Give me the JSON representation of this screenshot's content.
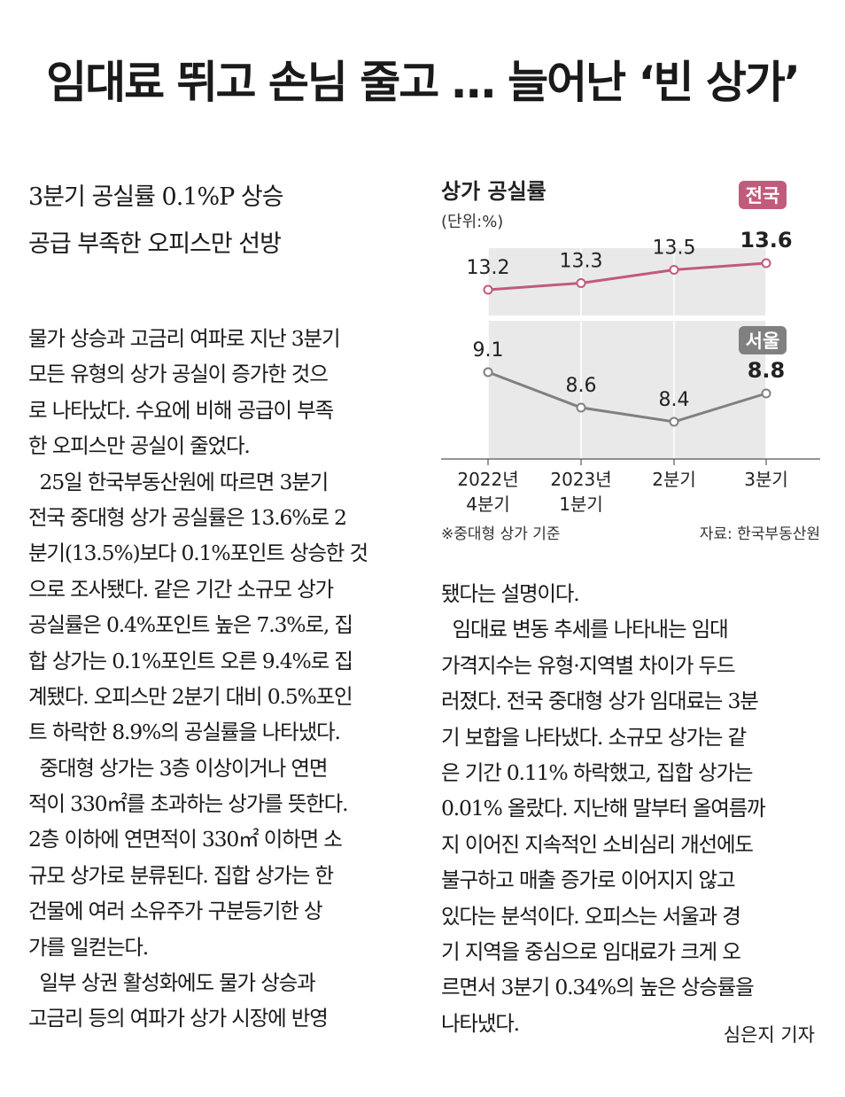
{
  "headline": "임대료 뛰고 손님 줄고 … 늘어난 ‘빈 상가’",
  "subhead": [
    "3분기 공실률 0.1%P 상승",
    "공급 부족한 오피스만 선방"
  ],
  "body_left": [
    "물가 상승과 고금리 여파로 지난 3분기",
    "모든 유형의 상가 공실이 증가한 것으",
    "로 나타났다. 수요에 비해 공급이 부족",
    "한 오피스만 공실이 줄었다.",
    "  25일 한국부동산원에 따르면 3분기",
    "전국 중대형 상가 공실률은 13.6%로 2",
    "분기(13.5%)보다 0.1%포인트 상승한 것",
    "으로 조사됐다. 같은 기간 소규모 상가",
    "공실률은 0.4%포인트 높은 7.3%로, 집",
    "합 상가는 0.1%포인트 오른 9.4%로 집",
    "계됐다. 오피스만 2분기 대비 0.5%포인",
    "트 하락한 8.9%의 공실률을 나타냈다.",
    "  중대형 상가는 3층 이상이거나 연면",
    "적이 330㎡를 초과하는 상가를 뜻한다.",
    "2층 이하에 연면적이 330㎡ 이하면 소",
    "규모 상가로 분류된다. 집합 상가는 한",
    "건물에 여러 소유주가 구분등기한 상",
    "가를 일컫는다.",
    "  일부 상권 활성화에도 물가 상승과",
    "고금리 등의 여파가 상가 시장에 반영"
  ],
  "body_right": [
    "됐다는 설명이다.",
    "  임대료 변동 추세를 나타내는 임대",
    "가격지수는 유형·지역별 차이가 두드",
    "러졌다. 전국 중대형 상가 임대료는 3분",
    "기 보합을 나타냈다. 소규모 상가는 같",
    "은 기간 0.11% 하락했고, 집합 상가는",
    "0.01% 올랐다. 지난해 말부터 올여름까",
    "지 이어진 지속적인 소비심리 개선에도",
    "불구하고 매출 증가로 이어지지 않고",
    "있다는 분석이다. 오피스는 서울과 경",
    "기 지역을 중심으로 임대료가 크게 오",
    "르면서 3분기 0.34%의 높은 상승률을",
    "나타냈다."
  ],
  "byline": "심은지 기자",
  "chart_data": {
    "type": "line",
    "title": "상가 공실률",
    "unit_label": "(단위:%)",
    "categories": [
      [
        "2022년",
        "4분기"
      ],
      [
        "2023년",
        "1분기"
      ],
      [
        "2분기"
      ],
      [
        "3분기"
      ]
    ],
    "series": [
      {
        "name": "전국",
        "values": [
          13.2,
          13.3,
          13.5,
          13.6
        ],
        "value_labels": [
          "13.2",
          "13.3",
          "13.5",
          "13.6"
        ],
        "color": "#c25a7c"
      },
      {
        "name": "서울",
        "values": [
          9.1,
          8.6,
          8.4,
          8.8
        ],
        "value_labels": [
          "9.1",
          "8.6",
          "8.4",
          "8.8"
        ],
        "color": "#808080"
      }
    ],
    "footnote": "※중대형 상가 기준",
    "source": "자료: 한국부동산원",
    "colors": {
      "panel": "#e9e9e9",
      "point_fill": "#ffffff"
    }
  }
}
